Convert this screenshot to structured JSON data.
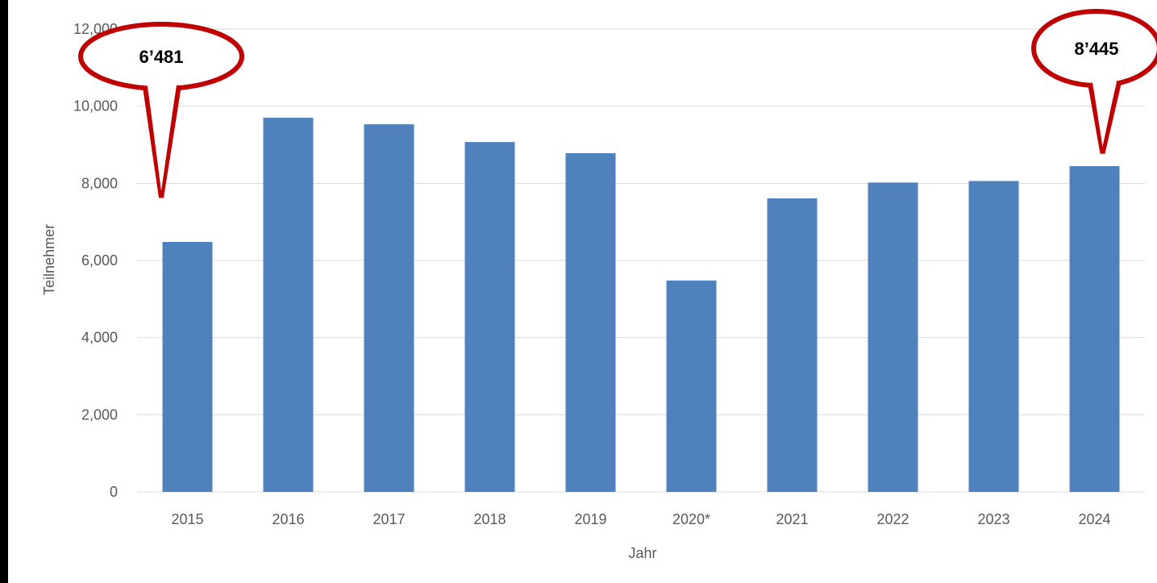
{
  "chart_data": {
    "type": "bar",
    "title": "",
    "xlabel": "Jahr",
    "ylabel": "Teilnehmer",
    "categories": [
      "2015",
      "2016",
      "2017",
      "2018",
      "2019",
      "2020*",
      "2021",
      "2022",
      "2023",
      "2024"
    ],
    "series": [
      {
        "values": [
          6481,
          9700,
          9530,
          9070,
          8780,
          5480,
          7610,
          8020,
          8060,
          8445
        ]
      }
    ],
    "ylim": [
      0,
      12000
    ],
    "yticks": [
      "0",
      "2,000",
      "4,000",
      "6,000",
      "8,000",
      "10,000",
      "12,000"
    ],
    "grid": true,
    "legend": "none",
    "annotations": [
      {
        "category": "2015",
        "text": "6’481"
      },
      {
        "category": "2024",
        "text": "8’445"
      }
    ]
  },
  "colors": {
    "background": "#000000",
    "plot_area": "#ffffff",
    "bar": "#4f81bd",
    "gridline": "#d9d9d9",
    "text": "#595959",
    "callout_outline": "#c00000",
    "callout_fill": "#ffffff"
  }
}
